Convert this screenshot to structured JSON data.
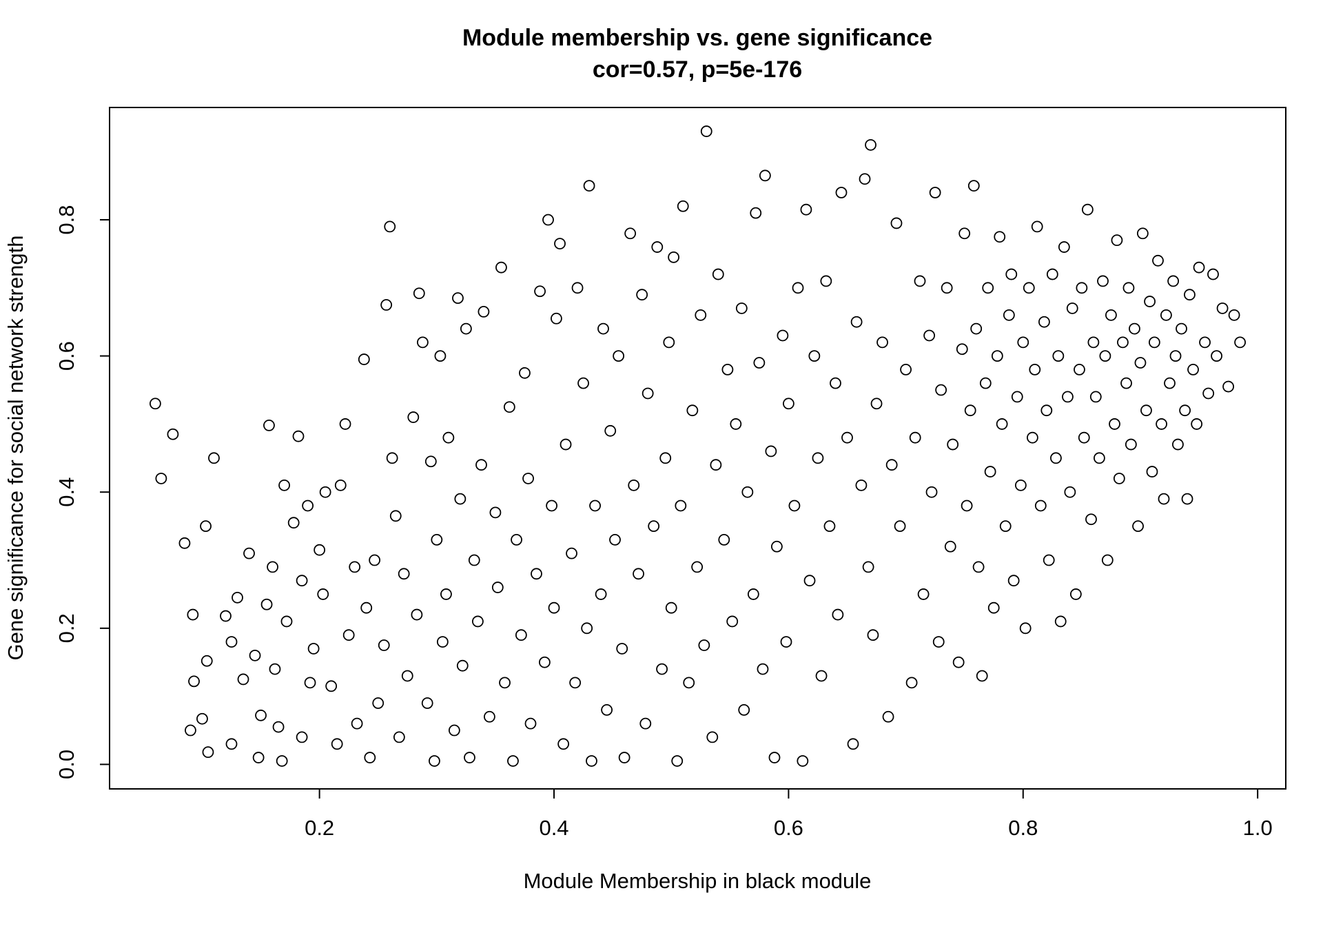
{
  "chart_data": {
    "type": "scatter",
    "title": "Module membership vs. gene significance",
    "subtitle": "cor=0.57, p=5e-176",
    "x_label": "Module Membership in black module",
    "y_label": "Gene significance for social network strength",
    "color": "#000000",
    "xlim": [
      0.021,
      1.024
    ],
    "ylim": [
      -0.036,
      0.965
    ],
    "xticks": [
      0.2,
      0.4,
      0.6,
      0.8,
      {
        "value": 1,
        "label": "1.0"
      }
    ],
    "yticks": [
      {
        "value": 0,
        "label": "0.0"
      },
      0.2,
      0.4,
      0.6,
      0.8
    ],
    "grid": false,
    "x": [
      0.06,
      0.065,
      0.075,
      0.085,
      0.09,
      0.092,
      0.093,
      0.1,
      0.103,
      0.104,
      0.105,
      0.11,
      0.12,
      0.125,
      0.125,
      0.13,
      0.135,
      0.14,
      0.145,
      0.148,
      0.15,
      0.155,
      0.157,
      0.16,
      0.162,
      0.165,
      0.168,
      0.17,
      0.172,
      0.178,
      0.182,
      0.185,
      0.185,
      0.19,
      0.192,
      0.195,
      0.2,
      0.203,
      0.205,
      0.21,
      0.215,
      0.218,
      0.222,
      0.225,
      0.23,
      0.232,
      0.238,
      0.24,
      0.243,
      0.247,
      0.25,
      0.255,
      0.257,
      0.26,
      0.262,
      0.265,
      0.268,
      0.272,
      0.275,
      0.28,
      0.283,
      0.285,
      0.288,
      0.292,
      0.295,
      0.298,
      0.3,
      0.303,
      0.305,
      0.308,
      0.31,
      0.315,
      0.318,
      0.32,
      0.322,
      0.325,
      0.328,
      0.332,
      0.335,
      0.338,
      0.34,
      0.345,
      0.35,
      0.352,
      0.355,
      0.358,
      0.362,
      0.365,
      0.368,
      0.372,
      0.375,
      0.378,
      0.38,
      0.385,
      0.388,
      0.392,
      0.395,
      0.398,
      0.4,
      0.402,
      0.405,
      0.408,
      0.41,
      0.415,
      0.418,
      0.42,
      0.425,
      0.428,
      0.43,
      0.432,
      0.435,
      0.44,
      0.442,
      0.445,
      0.448,
      0.452,
      0.455,
      0.458,
      0.46,
      0.465,
      0.468,
      0.472,
      0.475,
      0.478,
      0.48,
      0.485,
      0.488,
      0.492,
      0.495,
      0.498,
      0.5,
      0.502,
      0.505,
      0.508,
      0.51,
      0.515,
      0.518,
      0.522,
      0.525,
      0.528,
      0.53,
      0.535,
      0.538,
      0.54,
      0.545,
      0.548,
      0.552,
      0.555,
      0.56,
      0.562,
      0.565,
      0.57,
      0.572,
      0.575,
      0.578,
      0.58,
      0.585,
      0.588,
      0.59,
      0.595,
      0.598,
      0.6,
      0.605,
      0.608,
      0.612,
      0.615,
      0.618,
      0.622,
      0.625,
      0.628,
      0.632,
      0.635,
      0.64,
      0.642,
      0.645,
      0.65,
      0.655,
      0.658,
      0.662,
      0.665,
      0.668,
      0.67,
      0.672,
      0.675,
      0.68,
      0.685,
      0.688,
      0.692,
      0.695,
      0.7,
      0.705,
      0.708,
      0.712,
      0.715,
      0.72,
      0.722,
      0.725,
      0.728,
      0.73,
      0.735,
      0.738,
      0.74,
      0.745,
      0.748,
      0.75,
      0.752,
      0.755,
      0.758,
      0.76,
      0.762,
      0.765,
      0.768,
      0.77,
      0.772,
      0.775,
      0.778,
      0.78,
      0.782,
      0.785,
      0.788,
      0.79,
      0.792,
      0.795,
      0.798,
      0.8,
      0.802,
      0.805,
      0.808,
      0.81,
      0.812,
      0.815,
      0.818,
      0.82,
      0.822,
      0.825,
      0.828,
      0.83,
      0.832,
      0.835,
      0.838,
      0.84,
      0.842,
      0.845,
      0.848,
      0.85,
      0.852,
      0.855,
      0.858,
      0.86,
      0.862,
      0.865,
      0.868,
      0.87,
      0.872,
      0.875,
      0.878,
      0.88,
      0.882,
      0.885,
      0.888,
      0.89,
      0.892,
      0.895,
      0.898,
      0.9,
      0.902,
      0.905,
      0.908,
      0.91,
      0.912,
      0.915,
      0.918,
      0.92,
      0.922,
      0.925,
      0.928,
      0.93,
      0.932,
      0.935,
      0.938,
      0.94,
      0.942,
      0.945,
      0.948,
      0.95,
      0.955,
      0.958,
      0.962,
      0.965,
      0.97,
      0.975,
      0.98,
      0.985
    ],
    "values": [
      0.53,
      0.42,
      0.485,
      0.325,
      0.05,
      0.22,
      0.122,
      0.067,
      0.35,
      0.152,
      0.018,
      0.45,
      0.218,
      0.18,
      0.03,
      0.245,
      0.125,
      0.31,
      0.16,
      0.01,
      0.072,
      0.235,
      0.498,
      0.29,
      0.14,
      0.055,
      0.005,
      0.41,
      0.21,
      0.355,
      0.482,
      0.27,
      0.04,
      0.38,
      0.12,
      0.17,
      0.315,
      0.25,
      0.4,
      0.115,
      0.03,
      0.41,
      0.5,
      0.19,
      0.29,
      0.06,
      0.595,
      0.23,
      0.01,
      0.3,
      0.09,
      0.175,
      0.675,
      0.79,
      0.45,
      0.365,
      0.04,
      0.28,
      0.13,
      0.51,
      0.22,
      0.692,
      0.62,
      0.09,
      0.445,
      0.005,
      0.33,
      0.6,
      0.18,
      0.25,
      0.48,
      0.05,
      0.685,
      0.39,
      0.145,
      0.64,
      0.01,
      0.3,
      0.21,
      0.44,
      0.665,
      0.07,
      0.37,
      0.26,
      0.73,
      0.12,
      0.525,
      0.005,
      0.33,
      0.19,
      0.575,
      0.42,
      0.06,
      0.28,
      0.695,
      0.15,
      0.8,
      0.38,
      0.23,
      0.655,
      0.765,
      0.03,
      0.47,
      0.31,
      0.12,
      0.7,
      0.56,
      0.2,
      0.85,
      0.005,
      0.38,
      0.25,
      0.64,
      0.08,
      0.49,
      0.33,
      0.6,
      0.17,
      0.01,
      0.78,
      0.41,
      0.28,
      0.69,
      0.06,
      0.545,
      0.35,
      0.76,
      0.14,
      0.45,
      0.62,
      0.23,
      0.745,
      0.005,
      0.38,
      0.82,
      0.12,
      0.52,
      0.29,
      0.66,
      0.175,
      0.93,
      0.04,
      0.44,
      0.72,
      0.33,
      0.58,
      0.21,
      0.5,
      0.67,
      0.08,
      0.4,
      0.25,
      0.81,
      0.59,
      0.14,
      0.865,
      0.46,
      0.01,
      0.32,
      0.63,
      0.18,
      0.53,
      0.38,
      0.7,
      0.005,
      0.815,
      0.27,
      0.6,
      0.45,
      0.13,
      0.71,
      0.35,
      0.56,
      0.22,
      0.84,
      0.48,
      0.03,
      0.65,
      0.41,
      0.86,
      0.29,
      0.91,
      0.19,
      0.53,
      0.62,
      0.07,
      0.44,
      0.795,
      0.35,
      0.58,
      0.12,
      0.48,
      0.71,
      0.25,
      0.63,
      0.4,
      0.84,
      0.18,
      0.55,
      0.7,
      0.32,
      0.47,
      0.15,
      0.61,
      0.78,
      0.38,
      0.52,
      0.85,
      0.64,
      0.29,
      0.13,
      0.56,
      0.7,
      0.43,
      0.23,
      0.6,
      0.775,
      0.5,
      0.35,
      0.66,
      0.72,
      0.27,
      0.54,
      0.41,
      0.62,
      0.2,
      0.7,
      0.48,
      0.58,
      0.79,
      0.38,
      0.65,
      0.52,
      0.3,
      0.72,
      0.45,
      0.6,
      0.21,
      0.76,
      0.54,
      0.4,
      0.67,
      0.25,
      0.58,
      0.7,
      0.48,
      0.815,
      0.36,
      0.62,
      0.54,
      0.45,
      0.71,
      0.6,
      0.3,
      0.66,
      0.5,
      0.77,
      0.42,
      0.62,
      0.56,
      0.7,
      0.47,
      0.64,
      0.35,
      0.59,
      0.78,
      0.52,
      0.68,
      0.43,
      0.62,
      0.74,
      0.5,
      0.39,
      0.66,
      0.56,
      0.71,
      0.6,
      0.47,
      0.64,
      0.52,
      0.39,
      0.69,
      0.58,
      0.5,
      0.73,
      0.62,
      0.545,
      0.72,
      0.6,
      0.67,
      0.555,
      0.66,
      0.62
    ]
  }
}
